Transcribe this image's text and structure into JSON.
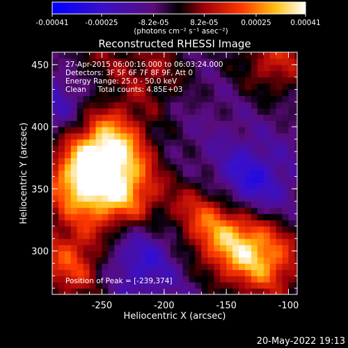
{
  "chart_data": {
    "type": "heatmap",
    "title": "Reconstructed RHESSI Image",
    "xlabel": "Heliocentric X (arcsec)",
    "ylabel": "Heliocentric Y (arcsec)",
    "xlim": [
      -290,
      -93
    ],
    "ylim": [
      265,
      460
    ],
    "x_ticks": [
      -250,
      -200,
      -150,
      -100
    ],
    "y_ticks": [
      300,
      350,
      400,
      450
    ],
    "colorbar": {
      "label": "(photons cm⁻² s⁻¹ asec⁻²)",
      "range": [
        -0.00041,
        0.00041
      ],
      "ticks": [
        "-0.00041",
        "-0.00025",
        "-8.2e-05",
        "8.2e-05",
        "0.00025",
        "0.00041"
      ],
      "colormap": "blue-purple-red-yellow-white"
    },
    "info": {
      "time": "27-Apr-2015 06:00:16.000 to 06:03:24.000",
      "detectors": "Detectors: 3F 5F 6F 7F 8F 9F, Att 0",
      "energy": "Energy Range: 25.0 - 50.0 keV",
      "clean": "Clean     Total counts: 4.85E+03",
      "peak": "Position of Peak = [-239,374]"
    },
    "sources": [
      {
        "x": -245,
        "y": 385,
        "amplitude": 0.00041
      },
      {
        "x": -268,
        "y": 355,
        "amplitude": 0.00036
      },
      {
        "x": -232,
        "y": 345,
        "amplitude": 0.0003
      },
      {
        "x": -165,
        "y": 330,
        "amplitude": 0.00026
      },
      {
        "x": -140,
        "y": 305,
        "amplitude": 0.0003
      },
      {
        "x": -115,
        "y": 290,
        "amplitude": 0.00024
      },
      {
        "x": -275,
        "y": 290,
        "amplitude": 0.00028
      },
      {
        "x": -110,
        "y": 455,
        "amplitude": 0.00022
      },
      {
        "x": -210,
        "y": 445,
        "amplitude": 0.00016
      },
      {
        "x": -260,
        "y": 455,
        "amplitude": 0.00012
      },
      {
        "x": -135,
        "y": 352,
        "amplitude": -0.00025
      },
      {
        "x": -220,
        "y": 295,
        "amplitude": -0.00018
      },
      {
        "x": -285,
        "y": 420,
        "amplitude": -0.00014
      }
    ]
  },
  "footer": {
    "timestamp": "20-May-2022 19:13"
  }
}
